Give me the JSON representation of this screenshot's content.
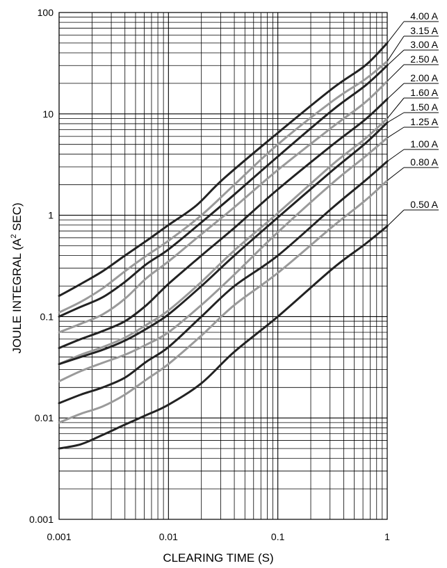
{
  "chart_data": {
    "type": "line",
    "xscale": "log",
    "yscale": "log",
    "xlim": [
      0.001,
      1
    ],
    "ylim": [
      0.001,
      100
    ],
    "grid": true,
    "xlabel": "CLEARING TIME (S)",
    "ylabel_main": "JOULE INTEGRAL (A",
    "ylabel_sup": "2",
    "ylabel_end": " SEC)",
    "x_ticks": [
      {
        "value": 0.001,
        "label": "0.001"
      },
      {
        "value": 0.01,
        "label": "0.01"
      },
      {
        "value": 0.1,
        "label": "0.1"
      },
      {
        "value": 1,
        "label": "1"
      }
    ],
    "y_ticks": [
      {
        "value": 0.001,
        "label": "0.001"
      },
      {
        "value": 0.01,
        "label": "0.01"
      },
      {
        "value": 0.1,
        "label": "0.1"
      },
      {
        "value": 1,
        "label": "1"
      },
      {
        "value": 10,
        "label": "10"
      },
      {
        "value": 100,
        "label": "100"
      }
    ],
    "colors": {
      "dark": "#222222",
      "light": "#9a9a9a"
    },
    "series": [
      {
        "name": "4.00 A",
        "color": "dark",
        "points": [
          [
            0.001,
            0.16
          ],
          [
            0.00158,
            0.21
          ],
          [
            0.0025,
            0.28
          ],
          [
            0.004,
            0.4
          ],
          [
            0.0063,
            0.56
          ],
          [
            0.01,
            0.8
          ],
          [
            0.018,
            1.25
          ],
          [
            0.032,
            2.3
          ],
          [
            0.1,
            6.5
          ],
          [
            0.32,
            18
          ],
          [
            0.63,
            30
          ],
          [
            1,
            50
          ]
        ]
      },
      {
        "name": "3.15 A",
        "color": "light",
        "points": [
          [
            0.001,
            0.11
          ],
          [
            0.00158,
            0.14
          ],
          [
            0.0025,
            0.19
          ],
          [
            0.004,
            0.28
          ],
          [
            0.0063,
            0.4
          ],
          [
            0.01,
            0.56
          ],
          [
            0.02,
            1.0
          ],
          [
            0.04,
            2.0
          ],
          [
            0.1,
            5.0
          ],
          [
            0.32,
            13.5
          ],
          [
            0.63,
            22
          ],
          [
            1,
            33
          ]
        ]
      },
      {
        "name": "3.00 A",
        "color": "dark",
        "points": [
          [
            0.001,
            0.1
          ],
          [
            0.00158,
            0.125
          ],
          [
            0.0025,
            0.155
          ],
          [
            0.004,
            0.22
          ],
          [
            0.0063,
            0.33
          ],
          [
            0.01,
            0.46
          ],
          [
            0.02,
            0.85
          ],
          [
            0.04,
            1.6
          ],
          [
            0.1,
            3.8
          ],
          [
            0.32,
            11
          ],
          [
            0.63,
            19
          ],
          [
            1,
            30
          ]
        ]
      },
      {
        "name": "2.50 A",
        "color": "light",
        "points": [
          [
            0.001,
            0.07
          ],
          [
            0.00158,
            0.085
          ],
          [
            0.0025,
            0.105
          ],
          [
            0.004,
            0.15
          ],
          [
            0.0063,
            0.24
          ],
          [
            0.01,
            0.35
          ],
          [
            0.02,
            0.65
          ],
          [
            0.04,
            1.2
          ],
          [
            0.1,
            2.8
          ],
          [
            0.32,
            7.5
          ],
          [
            0.63,
            13
          ],
          [
            1,
            21
          ]
        ]
      },
      {
        "name": "2.00 A",
        "color": "dark",
        "points": [
          [
            0.001,
            0.049
          ],
          [
            0.00158,
            0.06
          ],
          [
            0.0025,
            0.072
          ],
          [
            0.004,
            0.09
          ],
          [
            0.0063,
            0.13
          ],
          [
            0.01,
            0.21
          ],
          [
            0.02,
            0.4
          ],
          [
            0.04,
            0.75
          ],
          [
            0.1,
            1.8
          ],
          [
            0.32,
            5.0
          ],
          [
            0.63,
            8.8
          ],
          [
            1,
            14
          ]
        ]
      },
      {
        "name": "1.60 A",
        "color": "light",
        "points": [
          [
            0.001,
            0.034
          ],
          [
            0.00158,
            0.042
          ],
          [
            0.0025,
            0.05
          ],
          [
            0.004,
            0.062
          ],
          [
            0.0063,
            0.083
          ],
          [
            0.01,
            0.115
          ],
          [
            0.02,
            0.22
          ],
          [
            0.04,
            0.45
          ],
          [
            0.1,
            1.05
          ],
          [
            0.32,
            3.2
          ],
          [
            0.63,
            5.7
          ],
          [
            1,
            9
          ]
        ]
      },
      {
        "name": "1.50 A",
        "color": "dark",
        "points": [
          [
            0.001,
            0.034
          ],
          [
            0.00158,
            0.04
          ],
          [
            0.0025,
            0.047
          ],
          [
            0.004,
            0.058
          ],
          [
            0.0063,
            0.076
          ],
          [
            0.01,
            0.105
          ],
          [
            0.02,
            0.2
          ],
          [
            0.04,
            0.4
          ],
          [
            0.1,
            0.95
          ],
          [
            0.32,
            2.8
          ],
          [
            0.63,
            5.1
          ],
          [
            1,
            8.2
          ]
        ]
      },
      {
        "name": "1.25 A",
        "color": "light",
        "points": [
          [
            0.001,
            0.023
          ],
          [
            0.00158,
            0.029
          ],
          [
            0.0025,
            0.035
          ],
          [
            0.004,
            0.042
          ],
          [
            0.0063,
            0.053
          ],
          [
            0.01,
            0.07
          ],
          [
            0.02,
            0.13
          ],
          [
            0.04,
            0.26
          ],
          [
            0.1,
            0.68
          ],
          [
            0.32,
            2.1
          ],
          [
            0.63,
            3.8
          ],
          [
            1,
            5.8
          ]
        ]
      },
      {
        "name": "1.00 A",
        "color": "dark",
        "points": [
          [
            0.001,
            0.014
          ],
          [
            0.00158,
            0.017
          ],
          [
            0.0025,
            0.02
          ],
          [
            0.004,
            0.025
          ],
          [
            0.0063,
            0.036
          ],
          [
            0.01,
            0.05
          ],
          [
            0.02,
            0.1
          ],
          [
            0.04,
            0.2
          ],
          [
            0.1,
            0.4
          ],
          [
            0.32,
            1.2
          ],
          [
            0.63,
            2.2
          ],
          [
            1,
            3.4
          ]
        ]
      },
      {
        "name": "0.80 A",
        "color": "light",
        "points": [
          [
            0.001,
            0.009
          ],
          [
            0.00158,
            0.011
          ],
          [
            0.0025,
            0.013
          ],
          [
            0.004,
            0.017
          ],
          [
            0.0063,
            0.024
          ],
          [
            0.01,
            0.034
          ],
          [
            0.02,
            0.065
          ],
          [
            0.04,
            0.13
          ],
          [
            0.1,
            0.27
          ],
          [
            0.32,
            0.78
          ],
          [
            0.63,
            1.4
          ],
          [
            1,
            2.2
          ]
        ]
      },
      {
        "name": "0.50 A",
        "color": "dark",
        "points": [
          [
            0.001,
            0.005
          ],
          [
            0.00158,
            0.0055
          ],
          [
            0.0025,
            0.0068
          ],
          [
            0.004,
            0.0086
          ],
          [
            0.0063,
            0.0107
          ],
          [
            0.01,
            0.0135
          ],
          [
            0.02,
            0.022
          ],
          [
            0.04,
            0.045
          ],
          [
            0.1,
            0.1
          ],
          [
            0.32,
            0.3
          ],
          [
            0.63,
            0.52
          ],
          [
            1,
            0.78
          ]
        ]
      }
    ]
  }
}
